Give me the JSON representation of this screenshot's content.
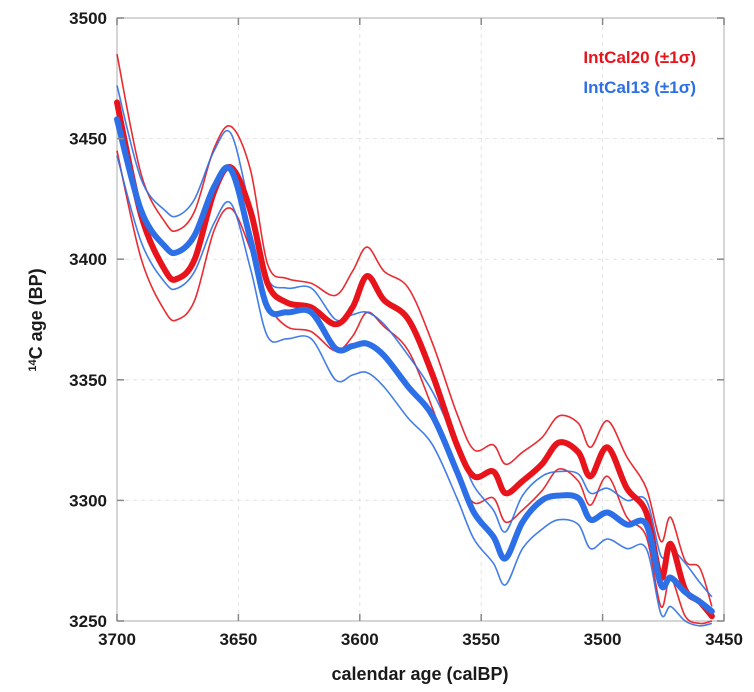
{
  "chart_data": {
    "type": "line",
    "title": "",
    "xlabel": "calendar age (calBP)",
    "ylabel_sup": "14",
    "ylabel": "C age (BP)",
    "xlim": [
      3700,
      3450
    ],
    "ylim": [
      3250,
      3500
    ],
    "x_reversed": true,
    "x_ticks": [
      3700,
      3650,
      3600,
      3550,
      3500,
      3450
    ],
    "y_ticks": [
      3250,
      3300,
      3350,
      3400,
      3450,
      3500
    ],
    "legend_position": "top-right",
    "legend": [
      {
        "label": "IntCal20 (±1σ)",
        "color": "#e8141c"
      },
      {
        "label": "IntCal13 (±1σ)",
        "color": "#2d6fe6"
      }
    ],
    "series": [
      {
        "name": "IntCal20",
        "color": "#e8141c",
        "x": [
          3700,
          3690,
          3680,
          3675,
          3668,
          3660,
          3653,
          3645,
          3638,
          3630,
          3620,
          3610,
          3603,
          3597,
          3590,
          3580,
          3570,
          3560,
          3553,
          3545,
          3540,
          3533,
          3525,
          3518,
          3510,
          3505,
          3498,
          3490,
          3482,
          3476,
          3472,
          3466,
          3460,
          3455
        ],
        "mean": [
          3465,
          3418,
          3395,
          3392,
          3400,
          3428,
          3438,
          3420,
          3390,
          3382,
          3380,
          3373,
          3380,
          3393,
          3383,
          3375,
          3352,
          3323,
          3310,
          3312,
          3303,
          3308,
          3315,
          3324,
          3320,
          3310,
          3322,
          3305,
          3295,
          3268,
          3282,
          3263,
          3258,
          3252
        ],
        "upper": [
          3485,
          3435,
          3415,
          3412,
          3420,
          3446,
          3455,
          3437,
          3398,
          3392,
          3390,
          3385,
          3395,
          3405,
          3395,
          3388,
          3365,
          3336,
          3321,
          3323,
          3315,
          3320,
          3326,
          3335,
          3332,
          3322,
          3333,
          3318,
          3305,
          3283,
          3293,
          3275,
          3272,
          3256
        ],
        "lower": [
          3445,
          3400,
          3378,
          3375,
          3383,
          3412,
          3421,
          3404,
          3382,
          3372,
          3370,
          3362,
          3368,
          3378,
          3372,
          3362,
          3338,
          3310,
          3299,
          3301,
          3291,
          3296,
          3304,
          3313,
          3308,
          3298,
          3310,
          3293,
          3285,
          3256,
          3268,
          3252,
          3249,
          3250
        ]
      },
      {
        "name": "IntCal13",
        "color": "#2d6fe6",
        "x": [
          3700,
          3690,
          3680,
          3675,
          3668,
          3660,
          3653,
          3645,
          3638,
          3630,
          3620,
          3610,
          3603,
          3597,
          3590,
          3580,
          3570,
          3560,
          3553,
          3545,
          3540,
          3533,
          3525,
          3518,
          3510,
          3505,
          3498,
          3490,
          3482,
          3476,
          3472,
          3466,
          3460,
          3455
        ],
        "mean": [
          3458,
          3420,
          3405,
          3403,
          3410,
          3430,
          3437,
          3408,
          3380,
          3378,
          3378,
          3363,
          3364,
          3365,
          3360,
          3347,
          3335,
          3312,
          3295,
          3285,
          3276,
          3291,
          3300,
          3302,
          3301,
          3292,
          3295,
          3290,
          3290,
          3265,
          3268,
          3262,
          3258,
          3254
        ],
        "upper": [
          3472,
          3433,
          3420,
          3418,
          3425,
          3445,
          3452,
          3420,
          3392,
          3388,
          3388,
          3375,
          3377,
          3378,
          3373,
          3360,
          3345,
          3323,
          3306,
          3296,
          3287,
          3302,
          3310,
          3312,
          3311,
          3303,
          3305,
          3300,
          3300,
          3277,
          3280,
          3274,
          3266,
          3260
        ],
        "lower": [
          3443,
          3407,
          3390,
          3388,
          3395,
          3415,
          3423,
          3396,
          3368,
          3367,
          3367,
          3350,
          3352,
          3353,
          3347,
          3334,
          3323,
          3301,
          3284,
          3274,
          3265,
          3280,
          3288,
          3292,
          3290,
          3280,
          3284,
          3280,
          3280,
          3253,
          3256,
          3250,
          3248,
          3249
        ]
      }
    ]
  }
}
